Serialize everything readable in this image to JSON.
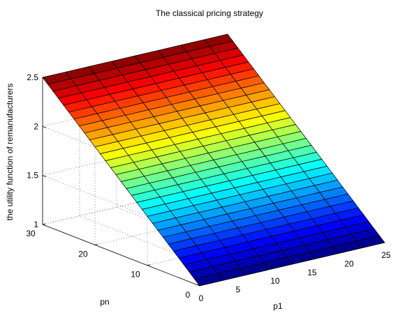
{
  "chart_data": {
    "type": "surface",
    "title": "The classical pricing strategy",
    "xlabel": "p1",
    "ylabel": "pn",
    "zlabel": "the utility function of remanufacturers",
    "x_range": [
      0,
      25
    ],
    "y_range": [
      0,
      30
    ],
    "z_range": [
      1,
      2.5
    ],
    "x_ticks": [
      "0",
      "5",
      "10",
      "15",
      "20",
      "25"
    ],
    "y_ticks": [
      "0",
      "10",
      "20",
      "30"
    ],
    "z_ticks": [
      "1",
      "1.5",
      "2",
      "2.5"
    ],
    "grid": true,
    "colormap": "jet",
    "surface": {
      "p1_span": [
        0,
        25
      ],
      "pn_span": [
        0,
        30
      ],
      "z_min": 1.0,
      "z_max": 2.5,
      "grid_lines_along_p1": 30,
      "grid_lines_along_pn": 8
    }
  }
}
